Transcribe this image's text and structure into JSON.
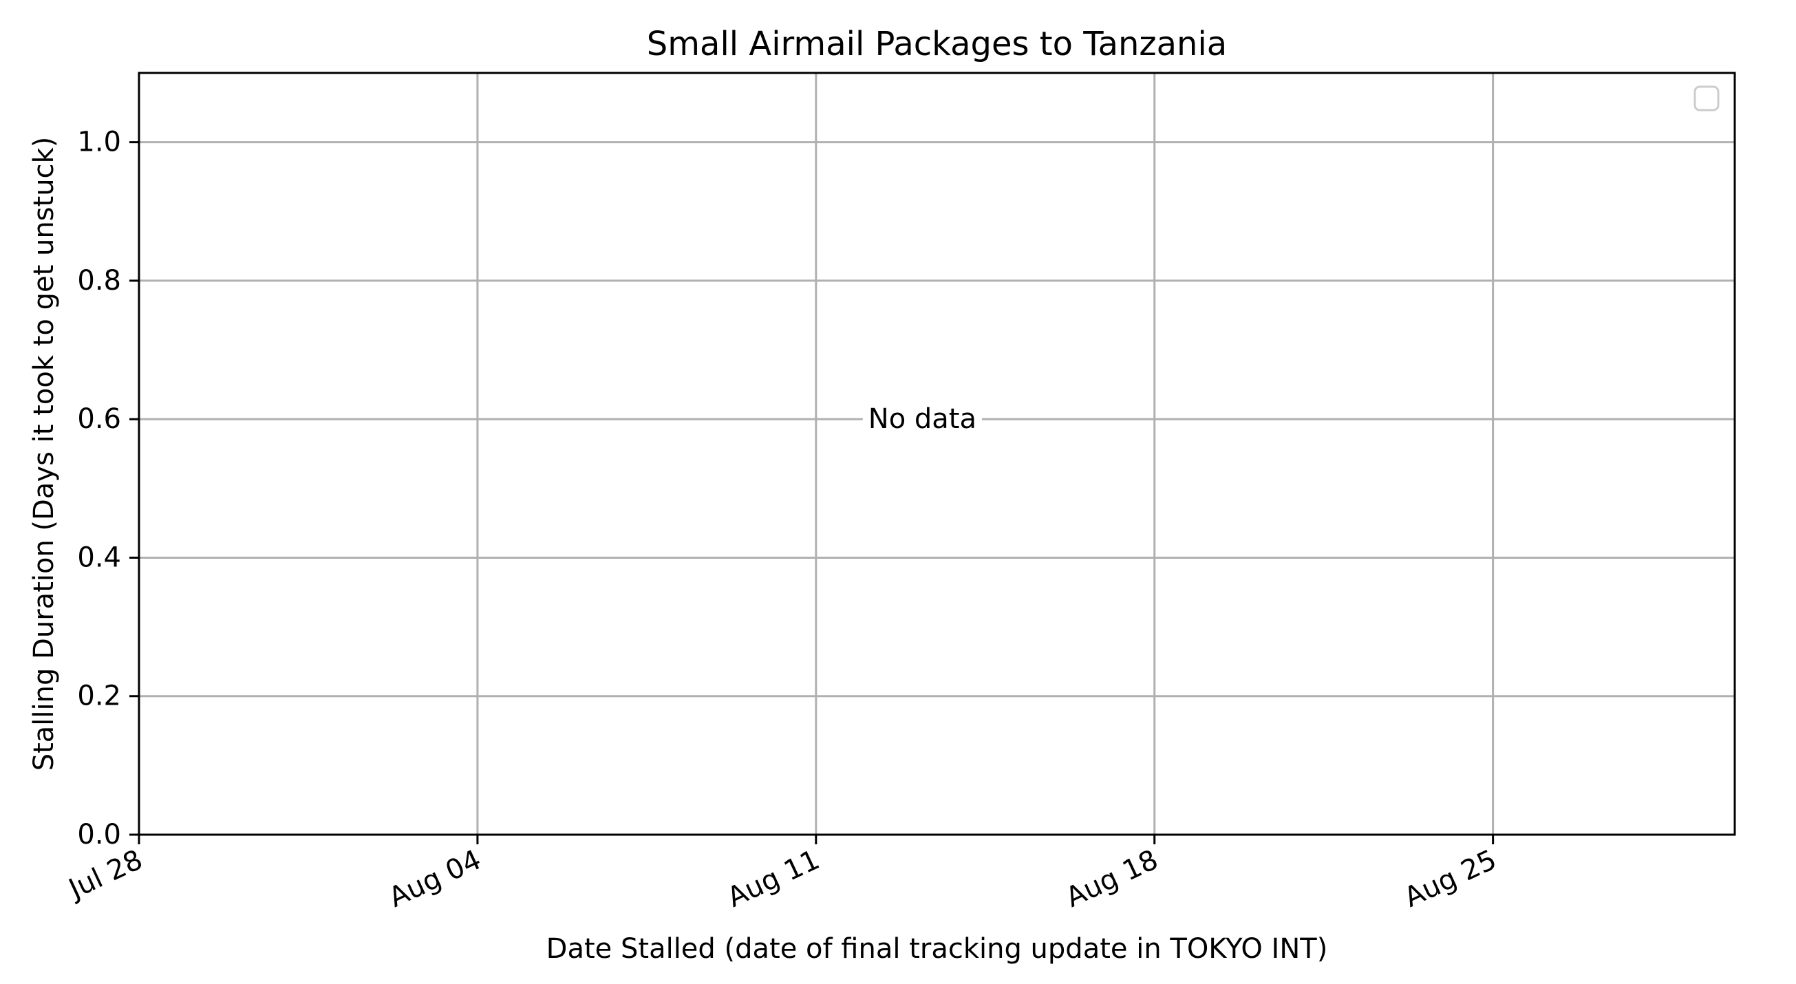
{
  "chart_data": {
    "type": "line",
    "title": "Small Airmail Packages to Tanzania",
    "xlabel": "Date Stalled (date of final tracking update in TOKYO INT)",
    "ylabel": "Stalling Duration (Days it took to get unstuck)",
    "x_range_days": [
      0,
      33
    ],
    "x_tick_days": [
      0,
      7,
      14,
      21,
      28
    ],
    "x_tick_labels": [
      "Jul 28",
      "Aug 04",
      "Aug 11",
      "Aug 18",
      "Aug 25"
    ],
    "ylim": [
      0,
      1.1
    ],
    "y_ticks": [
      0.0,
      0.2,
      0.4,
      0.6,
      0.8,
      1.0
    ],
    "y_tick_labels": [
      "0.0",
      "0.2",
      "0.4",
      "0.6",
      "0.8",
      "1.0"
    ],
    "series": [],
    "grid": true,
    "legend": {
      "position": "top-right",
      "entries": []
    },
    "annotation": {
      "text": "No data",
      "x_day": 16.2,
      "y": 0.6
    },
    "colors": {
      "grid": "#b0b0b0",
      "axes": "#000000",
      "legend_border": "#cccccc"
    }
  }
}
